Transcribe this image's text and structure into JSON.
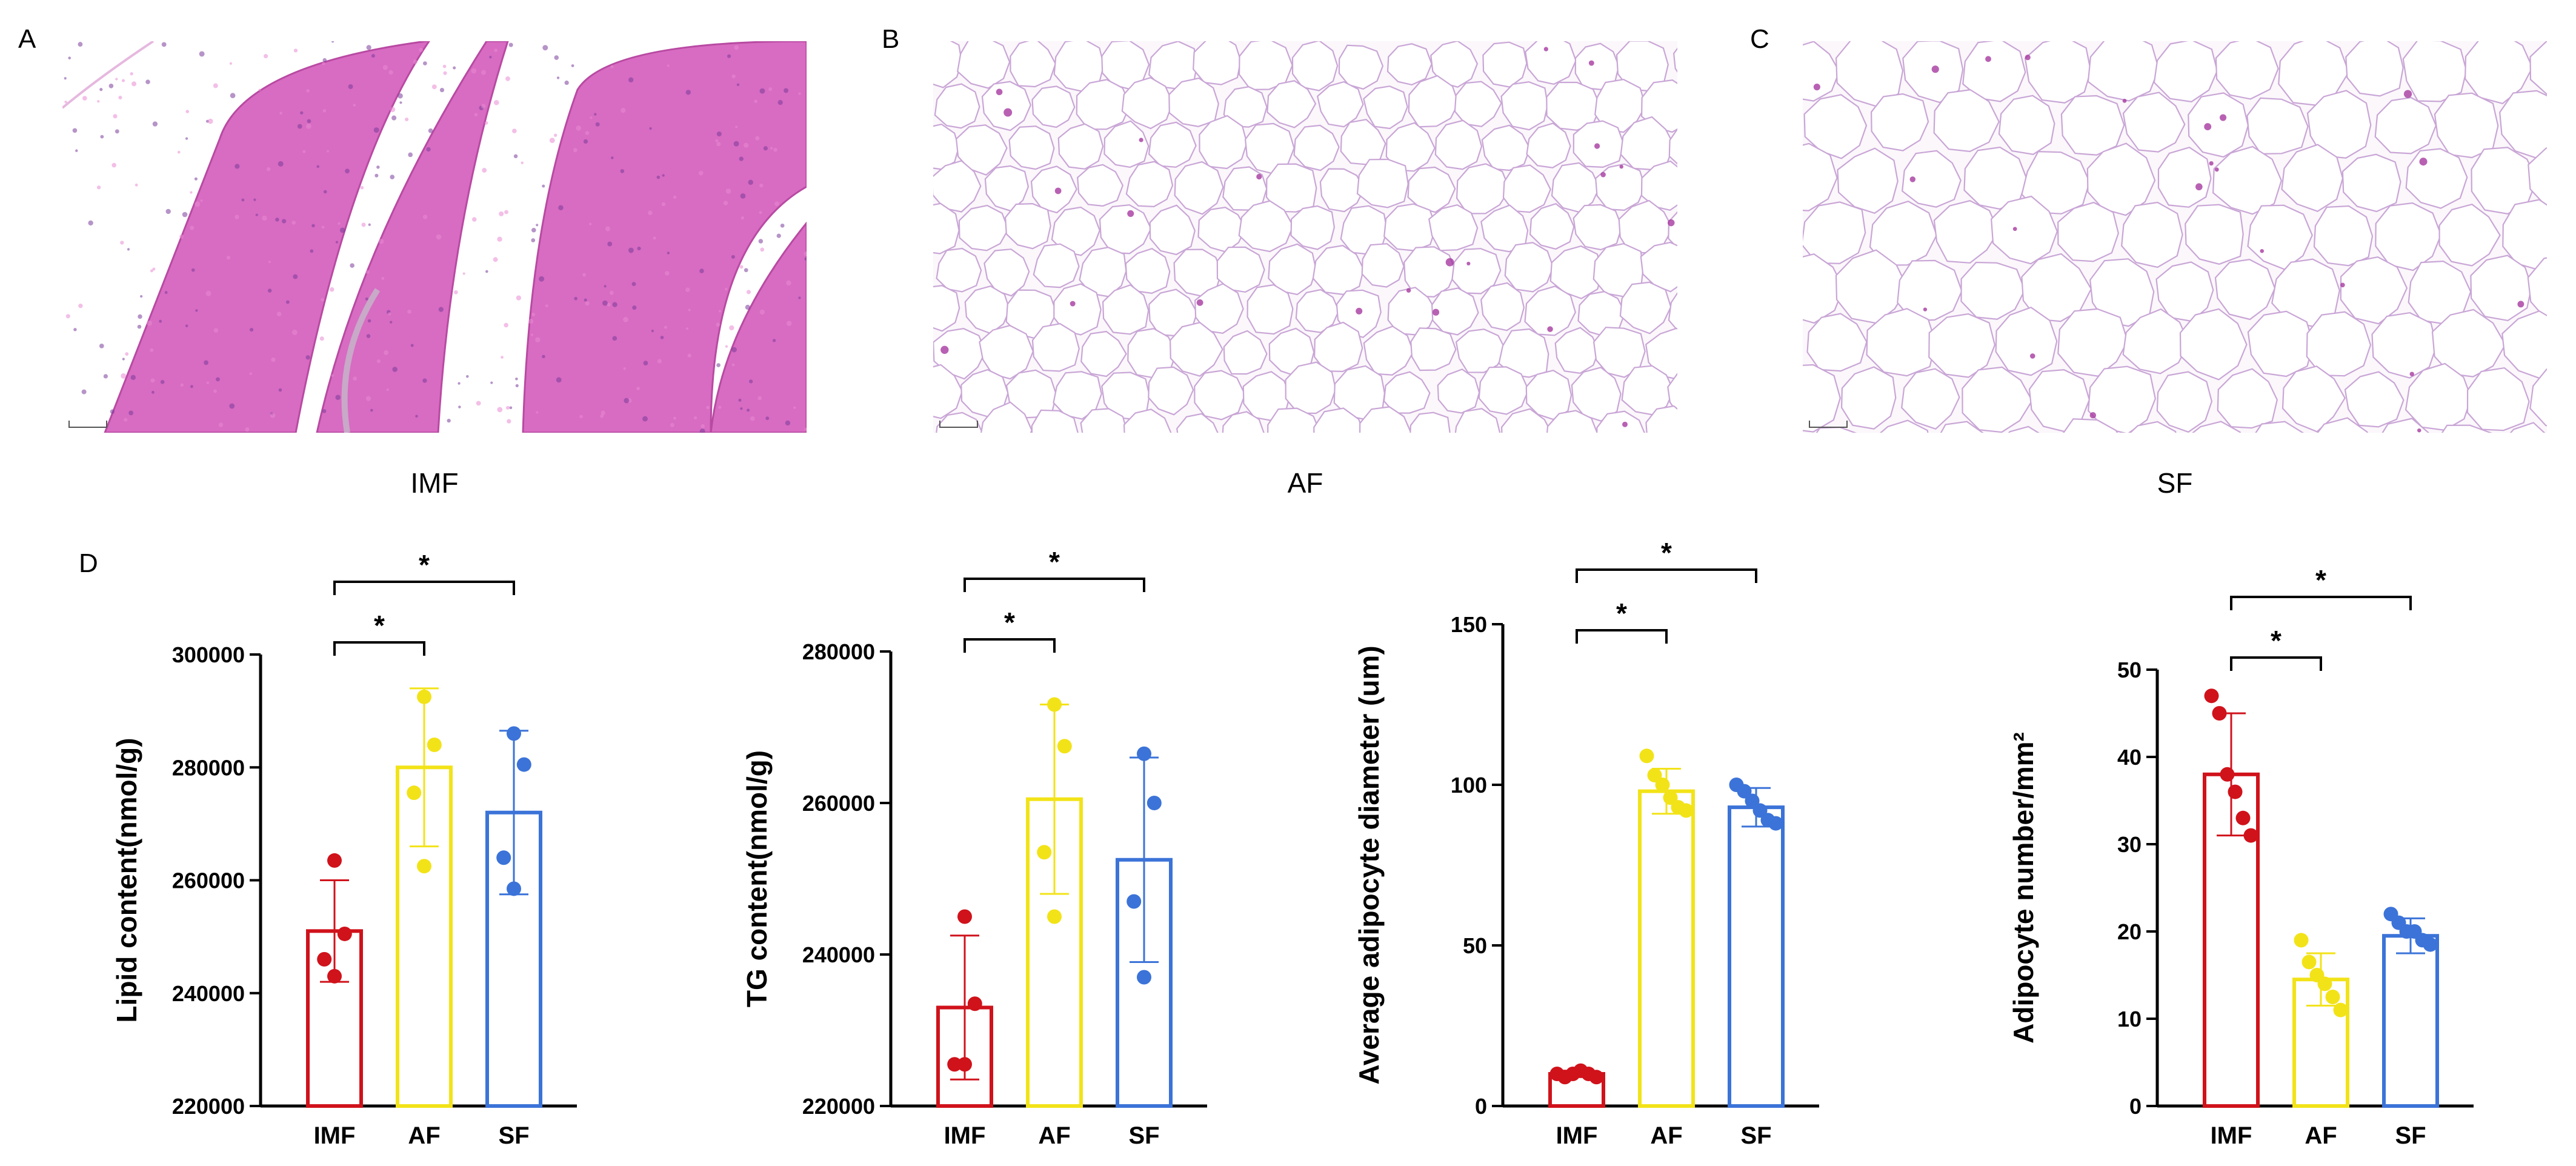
{
  "panels": [
    {
      "letter": "A",
      "caption": "IMF",
      "tissue": "muscle"
    },
    {
      "letter": "B",
      "caption": "AF",
      "tissue": "adipose-small"
    },
    {
      "letter": "C",
      "caption": "SF",
      "tissue": "adipose-large"
    }
  ],
  "panel_d_label": "D",
  "colors": {
    "IMF": "#d0121b",
    "AF": "#f2e318",
    "SF": "#3b73d8",
    "muscle": "#d86bc2",
    "muscle_light": "#e98bd3",
    "membrane": "#c9a6d6"
  },
  "chart_data": [
    {
      "type": "bar",
      "ylabel": "Lipid content(nmol/g)",
      "categories": [
        "IMF",
        "AF",
        "SF"
      ],
      "ylim": [
        220000,
        300000
      ],
      "yticks": [
        220000,
        240000,
        260000,
        280000,
        300000
      ],
      "ytick_labels": [
        "220000",
        "240000",
        "260000",
        "280000",
        "300000"
      ],
      "values": [
        251000,
        280000,
        272000
      ],
      "sd": [
        9000,
        14000,
        14500
      ],
      "points": [
        [
          263500,
          250500,
          246000,
          243000
        ],
        [
          292500,
          284000,
          275500,
          262500
        ],
        [
          286000,
          280500,
          264000,
          258500
        ]
      ],
      "significance": [
        {
          "from": 0,
          "to": 1,
          "label": "*"
        },
        {
          "from": 0,
          "to": 2,
          "label": "*"
        }
      ]
    },
    {
      "type": "bar",
      "ylabel": "TG content(nmol/g)",
      "categories": [
        "IMF",
        "AF",
        "SF"
      ],
      "ylim": [
        220000,
        280000
      ],
      "yticks": [
        220000,
        240000,
        260000,
        280000
      ],
      "ytick_labels": [
        "220000",
        "240000",
        "260000",
        "280000"
      ],
      "values": [
        233000,
        260500,
        252500
      ],
      "sd": [
        9500,
        12500,
        13500
      ],
      "points": [
        [
          245000,
          233500,
          225500,
          225500
        ],
        [
          273000,
          267500,
          253500,
          245000
        ],
        [
          266500,
          260000,
          247000,
          237000
        ]
      ],
      "significance": [
        {
          "from": 0,
          "to": 1,
          "label": "*"
        },
        {
          "from": 0,
          "to": 2,
          "label": "*"
        }
      ]
    },
    {
      "type": "bar",
      "ylabel": "Average adipocyte diameter (um)",
      "categories": [
        "IMF",
        "AF",
        "SF"
      ],
      "ylim": [
        0,
        150
      ],
      "yticks": [
        0,
        50,
        100,
        150
      ],
      "ytick_labels": [
        "0",
        "50",
        "100",
        "150"
      ],
      "values": [
        10,
        98,
        93
      ],
      "sd": [
        1,
        7,
        6
      ],
      "points": [
        [
          10,
          9,
          10,
          11,
          10,
          9
        ],
        [
          109,
          103,
          100,
          96,
          93,
          92
        ],
        [
          100,
          98,
          95,
          92,
          89,
          88
        ]
      ],
      "significance": [
        {
          "from": 0,
          "to": 1,
          "label": "*"
        },
        {
          "from": 0,
          "to": 2,
          "label": "*"
        }
      ]
    },
    {
      "type": "bar",
      "ylabel": "Adipocyte number/mm²",
      "categories": [
        "IMF",
        "AF",
        "SF"
      ],
      "ylim": [
        0,
        50
      ],
      "yticks": [
        0,
        10,
        20,
        30,
        40,
        50
      ],
      "ytick_labels": [
        "0",
        "10",
        "20",
        "30",
        "40",
        "50"
      ],
      "values": [
        38,
        14.5,
        19.5
      ],
      "sd": [
        7,
        3,
        2
      ],
      "points": [
        [
          47,
          45,
          38,
          36,
          33,
          31
        ],
        [
          19,
          16.5,
          15,
          14,
          12.5,
          11
        ],
        [
          22,
          21,
          20,
          20,
          19,
          18.5
        ]
      ],
      "significance": [
        {
          "from": 0,
          "to": 1,
          "label": "*"
        },
        {
          "from": 0,
          "to": 2,
          "label": "*"
        }
      ]
    }
  ]
}
